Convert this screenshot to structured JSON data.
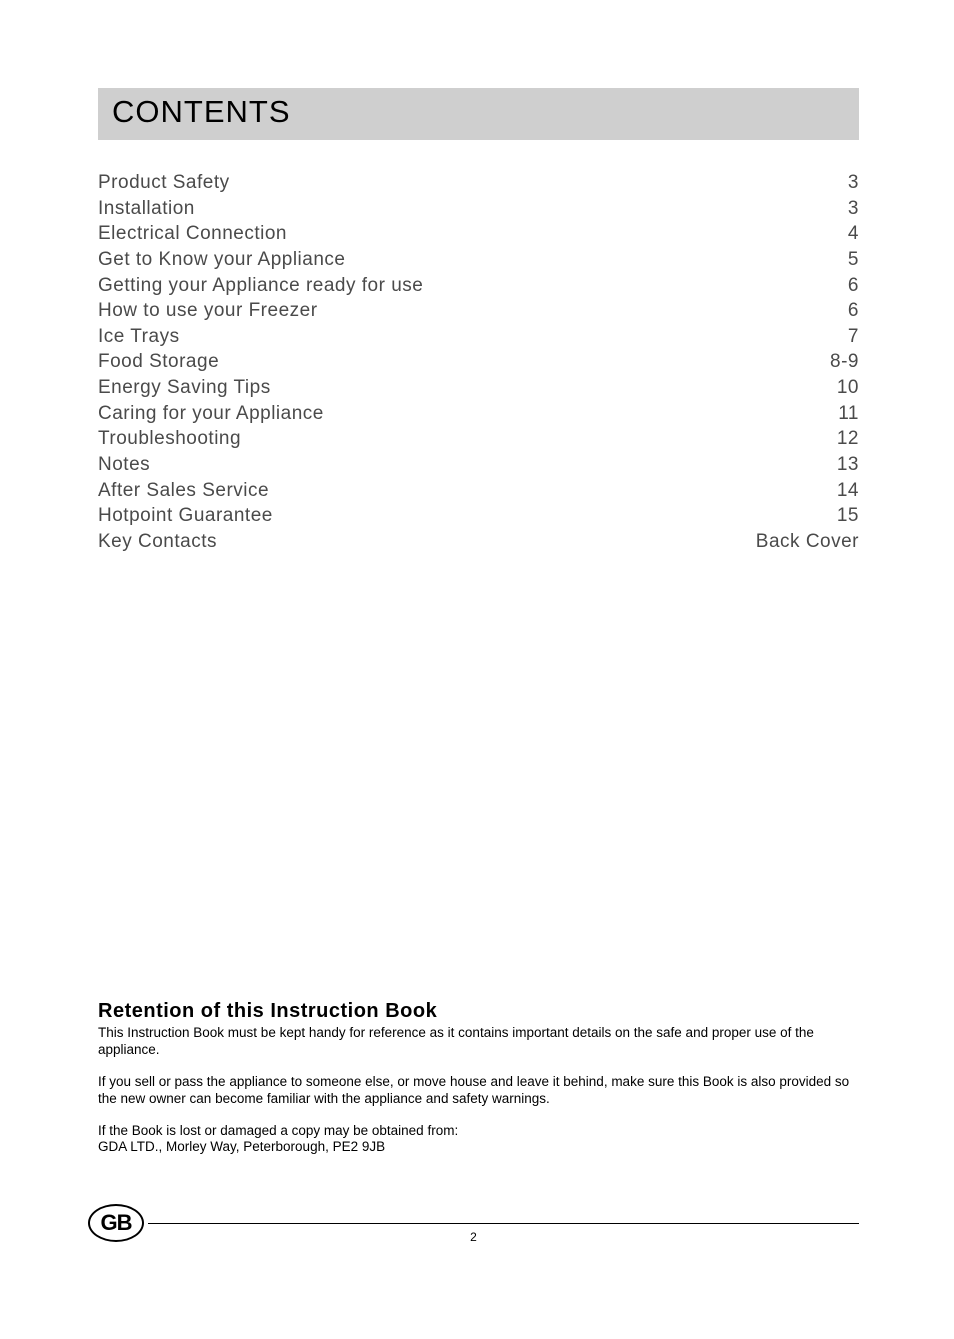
{
  "title": "CONTENTS",
  "toc": {
    "items": [
      {
        "label": "Product Safety",
        "page": "3"
      },
      {
        "label": "Installation",
        "page": "3"
      },
      {
        "label": "Electrical Connection",
        "page": "4"
      },
      {
        "label": "Get to Know your Appliance",
        "page": "5"
      },
      {
        "label": "Getting your Appliance ready for use",
        "page": "6"
      },
      {
        "label": "How to use your Freezer",
        "page": "6"
      },
      {
        "label": "Ice Trays",
        "page": "7"
      },
      {
        "label": "Food Storage",
        "page": "8-9"
      },
      {
        "label": "Energy Saving Tips",
        "page": "10"
      },
      {
        "label": "Caring for your Appliance",
        "page": "11"
      },
      {
        "label": "Troubleshooting",
        "page": "12"
      },
      {
        "label": "Notes",
        "page": "13"
      },
      {
        "label": "After Sales Service",
        "page": "14"
      },
      {
        "label": "Hotpoint Guarantee",
        "page": "15"
      },
      {
        "label": "Key Contacts",
        "page": "Back Cover"
      }
    ]
  },
  "retention": {
    "heading": "Retention of this Instruction Book",
    "para1": "This Instruction Book must be kept handy for reference as it contains important details on the safe and proper use of the appliance.",
    "para2": "If you sell or pass the appliance to someone else, or move house and leave it behind, make sure this Book is also provided so the new owner can become familiar with the appliance and safety warnings.",
    "para3": "If the Book is lost or damaged a copy may be obtained from:",
    "address": "GDA LTD., Morley Way, Peterborough, PE2 9JB"
  },
  "footer": {
    "badge": "GB",
    "page_number": "2"
  },
  "style": {
    "title_bg": "#cfcfcf",
    "text_color": "#4a4a4a",
    "body_font_size": 19,
    "retention_font_size": 13.5,
    "title_font_size": 31
  }
}
